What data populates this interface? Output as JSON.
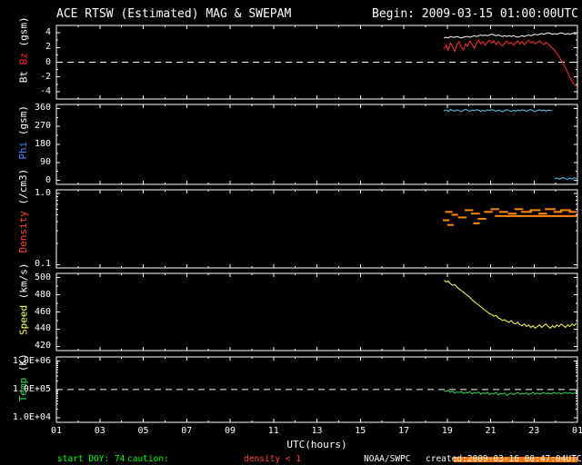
{
  "header": {
    "title": "ACE RTSW (Estimated) MAG & SWEPAM",
    "begin": "Begin: 2009-03-15 01:00:00UTC"
  },
  "colors": {
    "background": "#000000",
    "frame": "#ffffff",
    "bt": "#ffffff",
    "bz": "#ff3333",
    "phi": "#55ccff",
    "phi_label": "#4488ff",
    "density": "#ff8800",
    "density_label": "#ff4422",
    "speed": "#ffff55",
    "temp": "#33dd55",
    "status_green": "#00ff00",
    "status_red": "#ff4444",
    "caution_bar": "#ff7700"
  },
  "status": {
    "start_doy": "start DOY: 74",
    "caution_label": "caution:",
    "caution_value": "density < 1",
    "agency": "NOAA/SWPC",
    "created": "created:2009-03-16 00:47:04UTC",
    "caution_bar": {
      "start_h": 19.3,
      "end_h": 25
    }
  },
  "chart_data": {
    "type": "line",
    "title": "ACE RTSW (Estimated) MAG & SWEPAM",
    "x": {
      "label": "UTC(hours)",
      "range": [
        1,
        25
      ],
      "tick_hours": [
        1,
        3,
        5,
        7,
        9,
        11,
        13,
        15,
        17,
        19,
        21,
        23,
        25
      ],
      "tick_labels": [
        "01",
        "03",
        "05",
        "07",
        "09",
        "11",
        "13",
        "15",
        "17",
        "19",
        "21",
        "23",
        "01"
      ]
    },
    "panels": [
      {
        "name": "bt-bz",
        "ylabel_parts": [
          {
            "text": "Bt ",
            "color": "#ffffff"
          },
          {
            "text": "Bz ",
            "color": "#ff3333"
          },
          {
            "text": "(gsm)",
            "color": "#ffffff"
          }
        ],
        "scale": "linear",
        "ylim": [
          -5,
          5
        ],
        "yticks": [
          {
            "v": 4,
            "label": "4"
          },
          {
            "v": 2,
            "label": "2"
          },
          {
            "v": 0,
            "label": "0"
          },
          {
            "v": -2,
            "label": "-2"
          },
          {
            "v": -4,
            "label": "-4"
          }
        ],
        "yminor": [
          3,
          1,
          -1,
          -3
        ],
        "refline": 0,
        "series": [
          {
            "name": "Bt",
            "color": "#ffffff",
            "x_start": 18.85,
            "x_step": 0.1,
            "y": [
              3.3,
              3.4,
              3.3,
              3.5,
              3.4,
              3.4,
              3.5,
              3.4,
              3.3,
              3.4,
              3.5,
              3.5,
              3.4,
              3.5,
              3.6,
              3.5,
              3.6,
              3.7,
              3.6,
              3.7,
              3.6,
              3.7,
              3.8,
              3.7,
              3.6,
              3.7,
              3.6,
              3.5,
              3.6,
              3.5,
              3.6,
              3.5,
              3.6,
              3.5,
              3.4,
              3.5,
              3.6,
              3.5,
              3.6,
              3.7,
              3.6,
              3.7,
              3.8,
              3.7,
              3.8,
              3.9,
              3.8,
              3.9,
              4.0,
              3.9,
              3.8,
              3.9,
              3.8,
              3.9,
              4.0,
              3.9,
              3.8,
              3.9,
              3.8,
              3.9,
              3.9,
              3.8
            ]
          },
          {
            "name": "Bz",
            "color": "#ff3333",
            "x_start": 18.85,
            "x_step": 0.1,
            "y": [
              1.8,
              2.3,
              1.6,
              2.6,
              2.1,
              1.5,
              2.4,
              2.8,
              2.0,
              1.7,
              2.5,
              2.2,
              2.9,
              2.4,
              1.9,
              2.6,
              3.0,
              2.5,
              2.8,
              2.3,
              2.7,
              3.0,
              2.6,
              2.9,
              2.4,
              2.8,
              2.5,
              2.2,
              2.6,
              2.9,
              2.5,
              2.7,
              2.3,
              2.6,
              2.9,
              2.5,
              2.8,
              2.4,
              2.7,
              3.0,
              2.6,
              2.8,
              2.5,
              2.7,
              2.9,
              2.6,
              2.4,
              2.7,
              2.5,
              2.2,
              1.9,
              1.6,
              1.2,
              0.8,
              0.3,
              -0.2,
              -0.8,
              -1.4,
              -2.0,
              -2.6,
              -3.0,
              -3.3
            ]
          }
        ]
      },
      {
        "name": "phi",
        "ylabel_parts": [
          {
            "text": "Phi ",
            "color": "#4488ff"
          },
          {
            "text": "(gsm)",
            "color": "#ffffff"
          }
        ],
        "scale": "linear",
        "ylim": [
          -20,
          380
        ],
        "yticks": [
          {
            "v": 360,
            "label": "360"
          },
          {
            "v": 270,
            "label": "270"
          },
          {
            "v": 180,
            "label": "180"
          },
          {
            "v": 90,
            "label": "90"
          },
          {
            "v": 0,
            "label": "0"
          }
        ],
        "yminor": [
          315,
          225,
          135,
          45
        ],
        "series": [
          {
            "name": "Phi-high",
            "color": "#55ccff",
            "x_start": 18.85,
            "x_step": 0.1,
            "y": [
              348,
              352,
              345,
              355,
              350,
              347,
              353,
              349,
              344,
              351,
              356,
              350,
              346,
              352,
              348,
              354,
              350,
              345,
              351,
              347,
              353,
              349,
              355,
              350,
              346,
              352,
              348,
              343,
              350,
              354,
              349,
              345,
              351,
              347,
              352,
              348,
              353,
              350,
              346,
              351,
              355,
              349,
              344,
              350,
              353,
              348,
              352,
              347,
              351,
              349,
              350
            ]
          },
          {
            "name": "Phi-low",
            "color": "#55ccff",
            "x_start": 23.95,
            "x_step": 0.1,
            "y": [
              8,
              12,
              6,
              10,
              14,
              9,
              5,
              11,
              7,
              13,
              9
            ]
          }
        ]
      },
      {
        "name": "density",
        "ylabel_parts": [
          {
            "text": "Density ",
            "color": "#ff4422"
          },
          {
            "text": "(/cm3)",
            "color": "#ffffff"
          }
        ],
        "scale": "log",
        "ylim": [
          0.09,
          1.12
        ],
        "yticks": [
          {
            "v": 1.0,
            "label": "1.0"
          },
          {
            "v": 0.1,
            "label": "0.1"
          }
        ],
        "yminor": [
          0.2,
          0.3,
          0.4,
          0.5,
          0.6,
          0.7,
          0.8,
          0.9
        ],
        "dash_color": "#ff8800",
        "dashes": [
          [
            18.8,
            19.1,
            0.42
          ],
          [
            18.9,
            19.25,
            0.55
          ],
          [
            19.0,
            19.3,
            0.36
          ],
          [
            19.2,
            19.5,
            0.5
          ],
          [
            19.5,
            19.9,
            0.46
          ],
          [
            19.8,
            20.2,
            0.58
          ],
          [
            20.1,
            20.5,
            0.52
          ],
          [
            20.2,
            20.5,
            0.38
          ],
          [
            20.4,
            20.8,
            0.44
          ],
          [
            20.7,
            21.1,
            0.55
          ],
          [
            21.0,
            21.4,
            0.6
          ],
          [
            21.2,
            25.0,
            0.48
          ],
          [
            21.4,
            21.8,
            0.55
          ],
          [
            21.8,
            22.2,
            0.52
          ],
          [
            22.1,
            22.5,
            0.6
          ],
          [
            22.4,
            22.9,
            0.55
          ],
          [
            22.8,
            23.3,
            0.58
          ],
          [
            23.2,
            23.6,
            0.52
          ],
          [
            23.5,
            24.0,
            0.6
          ],
          [
            23.9,
            24.3,
            0.55
          ],
          [
            24.2,
            24.7,
            0.58
          ],
          [
            24.6,
            24.95,
            0.55
          ]
        ]
      },
      {
        "name": "speed",
        "ylabel_parts": [
          {
            "text": "Speed ",
            "color": "#ffff55"
          },
          {
            "text": "(km/s)",
            "color": "#ffffff"
          }
        ],
        "scale": "linear",
        "ylim": [
          415,
          505
        ],
        "yticks": [
          {
            "v": 500,
            "label": "500"
          },
          {
            "v": 480,
            "label": "480"
          },
          {
            "v": 460,
            "label": "460"
          },
          {
            "v": 440,
            "label": "440"
          },
          {
            "v": 420,
            "label": "420"
          }
        ],
        "yminor": [
          490,
          470,
          450,
          430
        ],
        "series": [
          {
            "name": "Speed",
            "color": "#ffff55",
            "x_start": 18.85,
            "x_step": 0.1,
            "y": [
              497,
              495,
              496,
              493,
              491,
              492,
              489,
              487,
              485,
              483,
              481,
              479,
              477,
              474,
              472,
              470,
              468,
              466,
              464,
              462,
              460,
              458,
              457,
              455,
              456,
              453,
              452,
              450,
              451,
              449,
              448,
              450,
              447,
              446,
              448,
              445,
              444,
              446,
              443,
              445,
              442,
              444,
              441,
              443,
              445,
              442,
              444,
              446,
              443,
              441,
              444,
              442,
              445,
              443,
              446,
              444,
              442,
              445,
              443,
              446,
              444,
              447
            ]
          }
        ]
      },
      {
        "name": "temp",
        "ylabel_parts": [
          {
            "text": "Temp ",
            "color": "#33dd55"
          },
          {
            "text": "(K)",
            "color": "#ffffff"
          }
        ],
        "scale": "log",
        "ylim": [
          7000,
          1400000
        ],
        "yticks": [
          {
            "v": 1000000,
            "label": "1.0E+06"
          },
          {
            "v": 100000,
            "label": "1.0E+05"
          },
          {
            "v": 10000,
            "label": "1.0E+04"
          }
        ],
        "yminor": [
          20000,
          30000,
          40000,
          50000,
          60000,
          70000,
          80000,
          90000,
          200000,
          300000,
          400000,
          500000,
          600000,
          700000,
          800000,
          900000
        ],
        "refline": 100000,
        "series": [
          {
            "name": "Temp",
            "color": "#33dd55",
            "x_start": 18.85,
            "x_step": 0.1,
            "y": [
              90000,
              85000,
              95000,
              80000,
              88000,
              75000,
              82000,
              78000,
              85000,
              72000,
              80000,
              76000,
              84000,
              70000,
              78000,
              74000,
              82000,
              68000,
              76000,
              72000,
              80000,
              66000,
              74000,
              70000,
              78000,
              64000,
              72000,
              68000,
              76000,
              62000,
              70000,
              74000,
              66000,
              72000,
              78000,
              68000,
              74000,
              70000,
              76000,
              66000,
              72000,
              78000,
              70000,
              75000,
              68000,
              73000,
              77000,
              71000,
              76000,
              69000,
              74000,
              78000,
              72000,
              76000,
              70000,
              75000,
              79000,
              73000,
              77000,
              71000,
              75000,
              73000
            ]
          }
        ]
      }
    ]
  }
}
